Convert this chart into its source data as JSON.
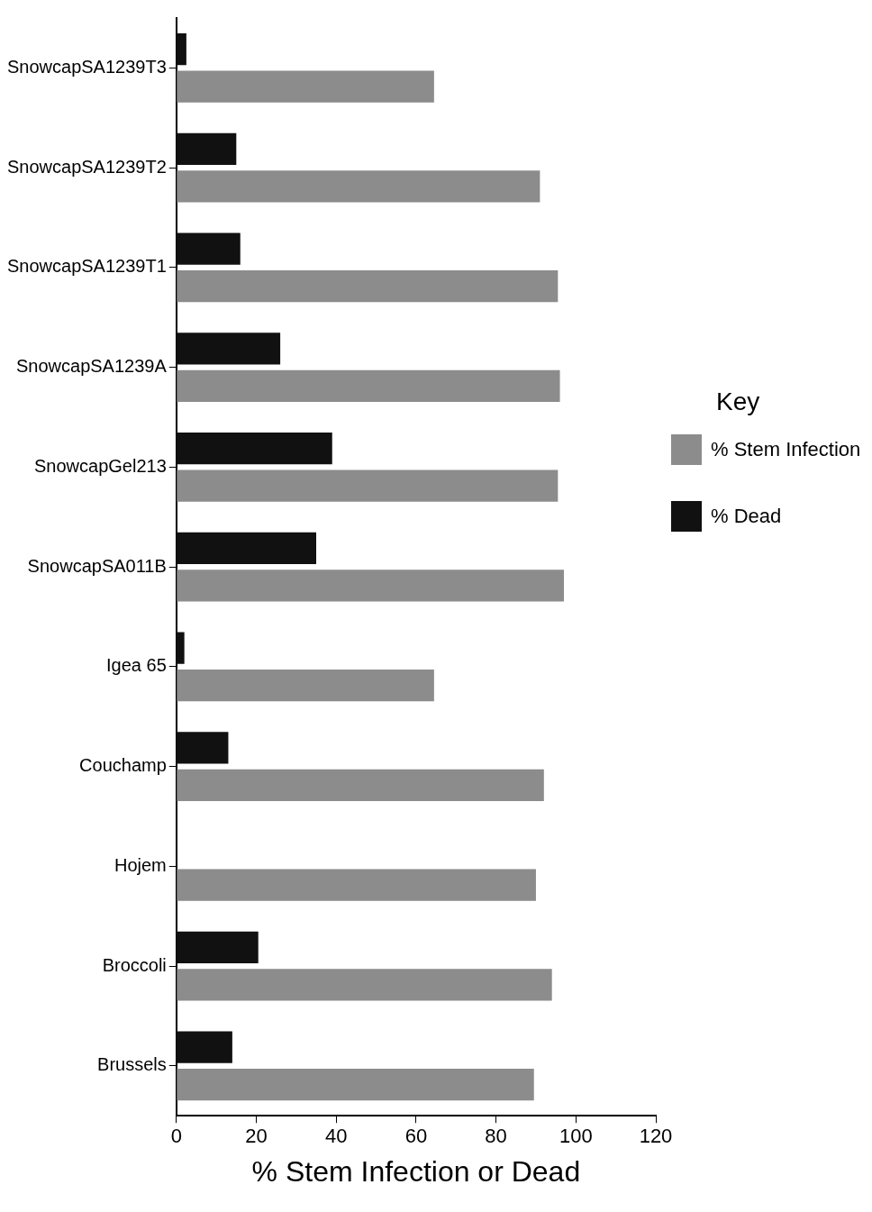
{
  "chart_data": {
    "type": "bar",
    "orientation": "horizontal",
    "xlabel": "% Stem Infection or Dead",
    "legend_title": "Key",
    "legend": "right",
    "categories": [
      "SnowcapSA1239T3",
      "SnowcapSA1239T2",
      "SnowcapSA1239T1",
      "SnowcapSA1239A",
      "SnowcapGel213",
      "SnowcapSA011B",
      "Igea 65",
      "Couchamp",
      "Hojem",
      "Broccoli",
      "Brussels"
    ],
    "series": [
      {
        "name": "% Stem Infection",
        "color": "#8c8c8c",
        "values": [
          64.5,
          91,
          95.5,
          96,
          95.5,
          97,
          64.5,
          92,
          90,
          94,
          89.5
        ]
      },
      {
        "name": "% Dead",
        "color": "#111111",
        "values": [
          2.5,
          15,
          16,
          26,
          39,
          35,
          2,
          13,
          0,
          20.5,
          14
        ]
      }
    ],
    "xlim": [
      0,
      120
    ],
    "xticks": [
      0,
      20,
      40,
      60,
      80,
      100,
      120
    ],
    "grid": false
  }
}
